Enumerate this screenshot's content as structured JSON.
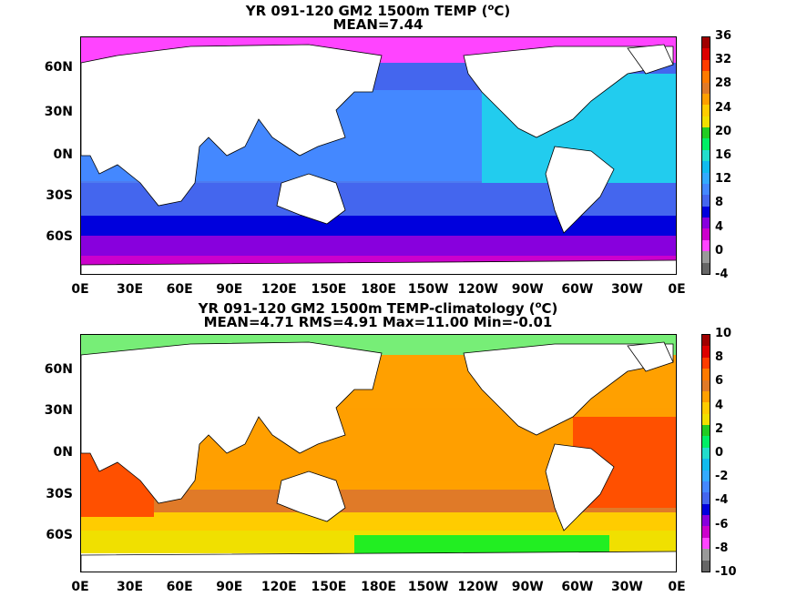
{
  "maps": [
    {
      "title": "YR 091-120 GM2 1500m TEMP (oC)",
      "title_main": "YR 091-120 GM2 1500m TEMP (",
      "title_sup": "o",
      "title_end": "C)",
      "subtitle": "MEAN=7.44",
      "lat_labels": [
        "60N",
        "30N",
        "0N",
        "30S",
        "60S"
      ],
      "lon_labels": [
        "0E",
        "30E",
        "60E",
        "90E",
        "120E",
        "150E",
        "180E",
        "150W",
        "120W",
        "90W",
        "60W",
        "30W",
        "0E"
      ],
      "colorbar_labels": [
        "36",
        "32",
        "28",
        "24",
        "20",
        "16",
        "12",
        "8",
        "4",
        "0",
        "-4"
      ],
      "colorbar_colors": [
        "#a00000",
        "#dd0000",
        "#ff3c00",
        "#ff7a00",
        "#e07a28",
        "#ff9f00",
        "#ffcc00",
        "#f0e000",
        "#22cc22",
        "#00ee66",
        "#22ddcc",
        "#11bbee",
        "#33aaff",
        "#4488ff",
        "#4466ee",
        "#0000dd",
        "#8800dd",
        "#cc00cc",
        "#ff44ff",
        "#999999",
        "#666666"
      ]
    },
    {
      "title": "YR 091-120 GM2 1500m TEMP-climatology (oC)",
      "title_main": "YR 091-120 GM2 1500m TEMP-climatology (",
      "title_sup": "o",
      "title_end": "C)",
      "subtitle": "MEAN=4.71   RMS=4.91   Max=11.00   Min=-0.01",
      "lat_labels": [
        "60N",
        "30N",
        "0N",
        "30S",
        "60S"
      ],
      "lon_labels": [
        "0E",
        "30E",
        "60E",
        "90E",
        "120E",
        "150E",
        "180E",
        "150W",
        "120W",
        "90W",
        "60W",
        "30W",
        "0E"
      ],
      "colorbar_labels": [
        "10",
        "8",
        "6",
        "4",
        "2",
        "0",
        "-2",
        "-4",
        "-6",
        "-8",
        "-10"
      ],
      "colorbar_colors": [
        "#a00000",
        "#dd0000",
        "#ff3c00",
        "#ff7a00",
        "#e07a28",
        "#ff9f00",
        "#ffcc00",
        "#f0e000",
        "#22cc22",
        "#00ee66",
        "#22ddcc",
        "#11bbee",
        "#33aaff",
        "#4488ff",
        "#4466ee",
        "#0000dd",
        "#8800dd",
        "#cc00cc",
        "#ff44ff",
        "#999999",
        "#666666"
      ]
    }
  ]
}
